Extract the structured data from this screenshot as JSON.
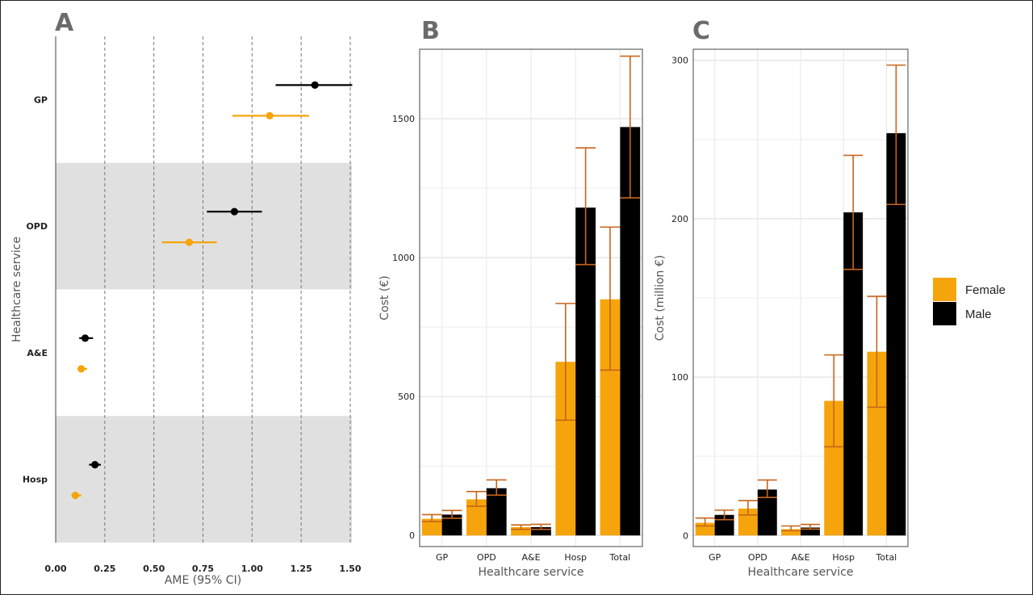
{
  "colors": {
    "female": "#F5A50B",
    "male": "#000000",
    "errorbar": "#C8651B",
    "band": "#E0E0E0"
  },
  "legend": {
    "items": [
      "Female",
      "Male"
    ]
  },
  "chart_data": [
    {
      "panel": "A",
      "type": "scatter",
      "orientation": "horizontal",
      "categories": [
        "GP",
        "OPD",
        "A&E",
        "Hosp"
      ],
      "xlabel": "AME (95% CI)",
      "ylabel": "Healthcare service",
      "xlim": [
        0,
        1.5
      ],
      "xticks": [
        "0.00",
        "0.25",
        "0.50",
        "0.75",
        "1.00",
        "1.25",
        "1.50"
      ],
      "series": [
        {
          "name": "Male",
          "values": [
            1.32,
            0.91,
            0.15,
            0.2
          ],
          "ci_low": [
            1.12,
            0.77,
            0.12,
            0.17
          ],
          "ci_high": [
            1.51,
            1.05,
            0.19,
            0.23
          ]
        },
        {
          "name": "Female",
          "values": [
            1.09,
            0.68,
            0.13,
            0.1
          ],
          "ci_low": [
            0.9,
            0.54,
            0.11,
            0.08
          ],
          "ci_high": [
            1.29,
            0.82,
            0.16,
            0.13
          ]
        }
      ]
    },
    {
      "panel": "B",
      "type": "bar",
      "categories": [
        "GP",
        "OPD",
        "A&E",
        "Hosp",
        "Total"
      ],
      "xlabel": "Healthcare service",
      "ylabel": "Cost (€)",
      "ylim": [
        -40,
        1750
      ],
      "yticks": [
        0,
        500,
        1000,
        1500
      ],
      "series": [
        {
          "name": "Female",
          "values": [
            60,
            130,
            30,
            625,
            850
          ],
          "ci_low": [
            50,
            105,
            22,
            415,
            595
          ],
          "ci_high": [
            75,
            158,
            38,
            835,
            1110
          ]
        },
        {
          "name": "Male",
          "values": [
            75,
            170,
            30,
            1180,
            1470
          ],
          "ci_low": [
            62,
            145,
            22,
            975,
            1215
          ],
          "ci_high": [
            90,
            200,
            40,
            1395,
            1725
          ]
        }
      ]
    },
    {
      "panel": "C",
      "type": "bar",
      "categories": [
        "GP",
        "OPD",
        "A&E",
        "Hosp",
        "Total"
      ],
      "xlabel": "Healthcare service",
      "ylabel": "Cost (million €)",
      "ylim": [
        -7,
        307
      ],
      "yticks": [
        0,
        100,
        200,
        300
      ],
      "series": [
        {
          "name": "Female",
          "values": [
            8,
            17,
            4,
            85,
            116
          ],
          "ci_low": [
            6,
            13,
            3,
            56,
            81
          ],
          "ci_high": [
            11,
            22,
            6,
            114,
            151
          ]
        },
        {
          "name": "Male",
          "values": [
            13,
            29,
            5,
            204,
            254
          ],
          "ci_low": [
            10,
            24,
            4,
            168,
            209
          ],
          "ci_high": [
            16,
            35,
            7,
            240,
            297
          ]
        }
      ]
    }
  ]
}
